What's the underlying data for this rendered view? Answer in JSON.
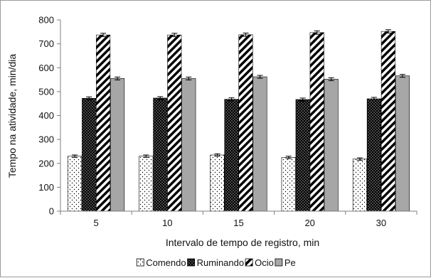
{
  "chart_data": {
    "type": "bar",
    "xlabel": "Intervalo de tempo de registro, min",
    "ylabel": "Tempo na atividade, min/dia",
    "ylim": [
      0,
      800
    ],
    "yticks": [
      0,
      100,
      200,
      300,
      400,
      500,
      600,
      700,
      800
    ],
    "categories": [
      "5",
      "10",
      "15",
      "20",
      "30"
    ],
    "legend_position": "bottom",
    "series": [
      {
        "name": "Comendo",
        "pattern": "dots",
        "color": "#ffffff",
        "values": [
          230,
          230,
          235,
          225,
          218
        ],
        "errors": [
          5,
          5,
          5,
          5,
          5
        ]
      },
      {
        "name": "Ruminando",
        "pattern": "dense-dots",
        "color": "#000000",
        "values": [
          472,
          473,
          468,
          467,
          470
        ],
        "errors": [
          6,
          6,
          6,
          6,
          6
        ]
      },
      {
        "name": "Ocio",
        "pattern": "diagonal-stripes",
        "color": "#000000",
        "values": [
          737,
          737,
          738,
          747,
          752
        ],
        "errors": [
          7,
          7,
          7,
          7,
          7
        ]
      },
      {
        "name": "Pe",
        "pattern": "solid",
        "color": "#a6a6a6",
        "values": [
          555,
          555,
          562,
          552,
          566
        ],
        "errors": [
          6,
          6,
          6,
          6,
          6
        ]
      }
    ]
  }
}
